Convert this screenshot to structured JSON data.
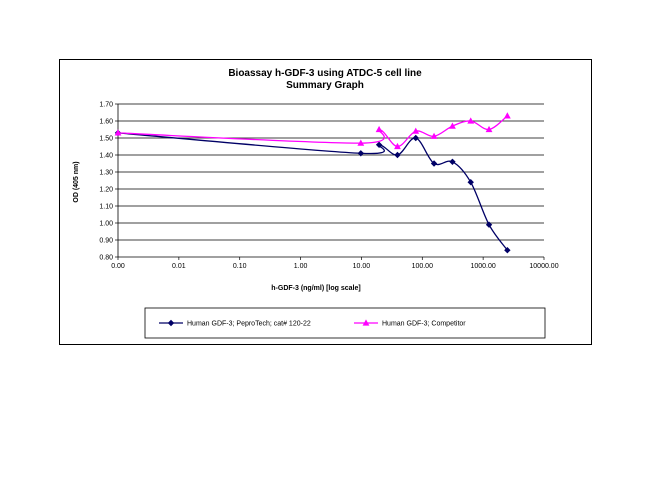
{
  "chart_data": {
    "type": "line",
    "title": "Bioassay h-GDF-3 using ATDC-5 cell line",
    "subtitle": "Summary Graph",
    "xlabel": "h-GDF-3 (ng/ml) [log scale]",
    "ylabel": "OD (405 nm)",
    "x_scale": "log",
    "x_tick_labels": [
      "0.00",
      "0.01",
      "0.10",
      "1.00",
      "10.00",
      "100.00",
      "1000.00",
      "10000.00"
    ],
    "y_tick_labels": [
      "0.80",
      "0.90",
      "1.00",
      "1.10",
      "1.20",
      "1.30",
      "1.40",
      "1.50",
      "1.60",
      "1.70"
    ],
    "ylim": [
      0.8,
      1.7
    ],
    "grid": "horizontal",
    "legend_position": "bottom",
    "series": [
      {
        "name": "Human GDF-3; PeproTech; cat# 120-22",
        "color": "#000066",
        "marker": "diamond",
        "x": [
          0.001,
          9.77,
          19.5,
          39.1,
          78.1,
          156,
          313,
          625,
          1250,
          2500
        ],
        "y": [
          1.53,
          1.41,
          1.46,
          1.4,
          1.5,
          1.35,
          1.36,
          1.24,
          0.99,
          0.84
        ]
      },
      {
        "name": "Human GDF-3; Competitor",
        "color": "#ff00ff",
        "marker": "triangle",
        "x": [
          0.001,
          9.77,
          19.5,
          39.1,
          78.1,
          156,
          313,
          625,
          1250,
          2500
        ],
        "y": [
          1.53,
          1.47,
          1.55,
          1.45,
          1.54,
          1.51,
          1.57,
          1.6,
          1.55,
          1.63
        ]
      }
    ]
  }
}
